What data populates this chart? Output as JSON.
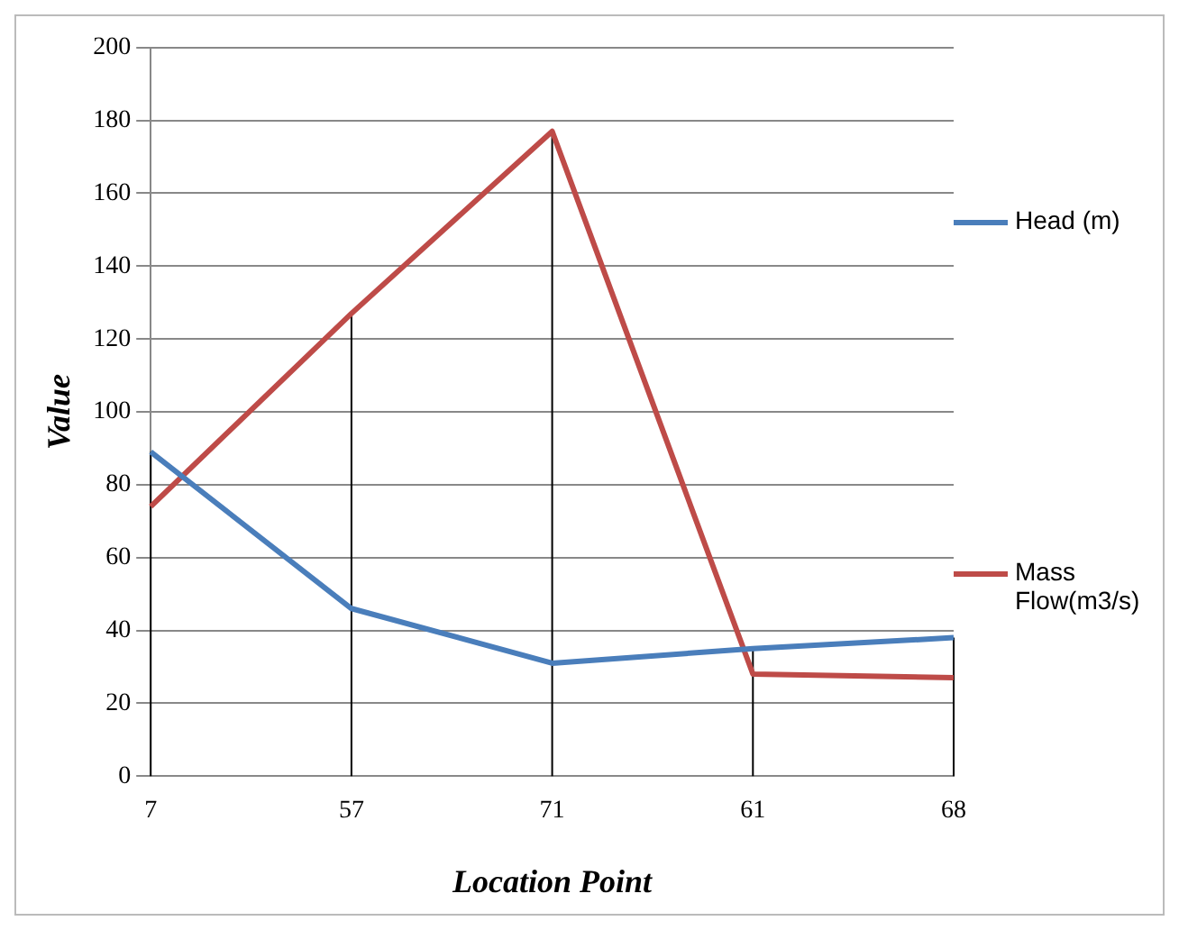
{
  "chart_data": {
    "type": "line",
    "xlabel": "Location Point",
    "ylabel": "Value",
    "categories": [
      "7",
      "57",
      "71",
      "61",
      "68"
    ],
    "series": [
      {
        "name": "Head (m)",
        "color": "#4a7ebb",
        "values": [
          89,
          46,
          31,
          35,
          38
        ],
        "errors": [
          [
            0,
            89
          ],
          null,
          null,
          [
            0,
            35
          ],
          [
            0,
            38
          ]
        ]
      },
      {
        "name": "Mass Flow(m3/s)",
        "color": "#be4b48",
        "values": [
          74,
          127,
          177,
          28,
          27
        ],
        "errors": [
          null,
          [
            0,
            127
          ],
          [
            0,
            177
          ],
          null,
          null
        ]
      }
    ],
    "ylim": [
      0,
      200
    ],
    "yticks": [
      0,
      20,
      40,
      60,
      80,
      100,
      120,
      140,
      160,
      180,
      200
    ],
    "grid": "y",
    "legend": "right",
    "marker": "none",
    "line_style": "solid"
  }
}
